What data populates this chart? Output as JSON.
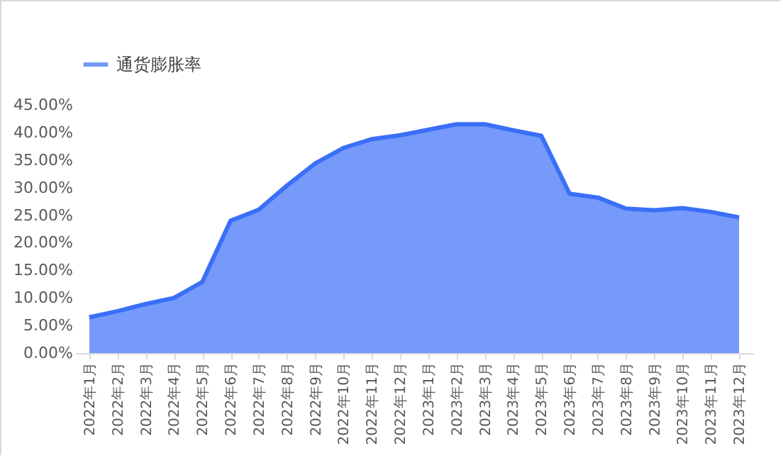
{
  "chart_data": {
    "type": "area",
    "categories": [
      "2022年1月",
      "2022年2月",
      "2022年3月",
      "2022年4月",
      "2022年5月",
      "2022年6月",
      "2022年7月",
      "2022年8月",
      "2022年9月",
      "2022年10月",
      "2022年11月",
      "2022年12月",
      "2023年1月",
      "2023年2月",
      "2023年3月",
      "2023年4月",
      "2023年5月",
      "2023年6月",
      "2023年7月",
      "2023年8月",
      "2023年9月",
      "2023年10月",
      "2023年11月",
      "2023年12月"
    ],
    "series": [
      {
        "name": "通货膨胀率",
        "color": "#3a6ff7",
        "values": [
          6.5,
          7.6,
          8.9,
          10,
          12.9,
          24,
          26,
          30.4,
          34.4,
          37.2,
          38.8,
          39.5,
          40.5,
          41.5,
          41.5,
          40.4,
          39.4,
          28.9,
          28.2,
          26.2,
          25.9,
          26.3,
          25.6,
          24.6
        ]
      }
    ],
    "ylim": [
      0,
      45
    ],
    "yticks": [
      {
        "value": 0,
        "label": "0.00%"
      },
      {
        "value": 5,
        "label": "5.00%"
      },
      {
        "value": 10,
        "label": "10.00%"
      },
      {
        "value": 15,
        "label": "15.00%"
      },
      {
        "value": 20,
        "label": "20.00%"
      },
      {
        "value": 25,
        "label": "25.00%"
      },
      {
        "value": 30,
        "label": "30.00%"
      },
      {
        "value": 35,
        "label": "35.00%"
      },
      {
        "value": 40,
        "label": "40.00%"
      },
      {
        "value": 45,
        "label": "45.00%"
      }
    ],
    "grid": false,
    "legend": "top",
    "marker": "none",
    "line_style": "solid"
  }
}
